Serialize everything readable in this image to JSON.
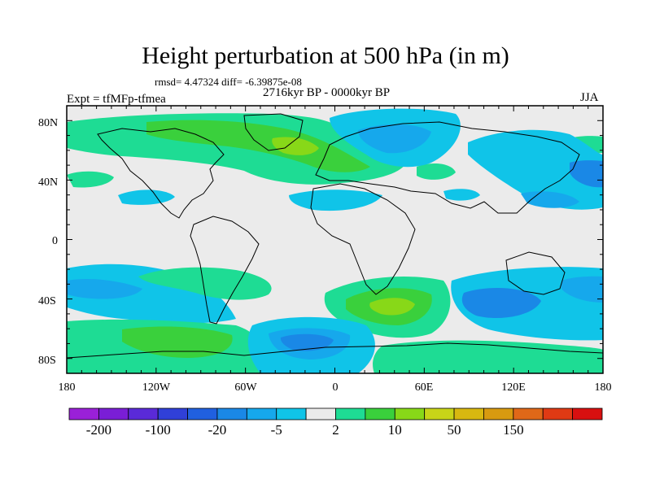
{
  "title": "Height perturbation at 500 hPa (in m)",
  "stats_line": "rmsd= 4.47324 diff= -6.39875e-08",
  "period_label": "2716kyr BP - 0000kyr BP",
  "experiment_label": "Expt = tfMFp-tfmea",
  "season_label": "JJA",
  "lat_ticks": [
    "80N",
    "40N",
    "0",
    "40S",
    "80S"
  ],
  "lon_ticks": [
    "180",
    "120W",
    "60W",
    "0",
    "60E",
    "120E",
    "180"
  ],
  "colorbar": {
    "colors": [
      "#9a20d8",
      "#7a1ed6",
      "#5a2ad8",
      "#3040d8",
      "#2060e0",
      "#1a88e6",
      "#16a8ec",
      "#10c4e8",
      "#ebebeb",
      "#1edc94",
      "#3ad03c",
      "#88d818",
      "#c8d418",
      "#d8b810",
      "#d89a10",
      "#e06818",
      "#e03a14",
      "#d81010"
    ],
    "labels": [
      "-200",
      "-100",
      "-20",
      "-5",
      "2",
      "10",
      "50",
      "150"
    ]
  }
}
